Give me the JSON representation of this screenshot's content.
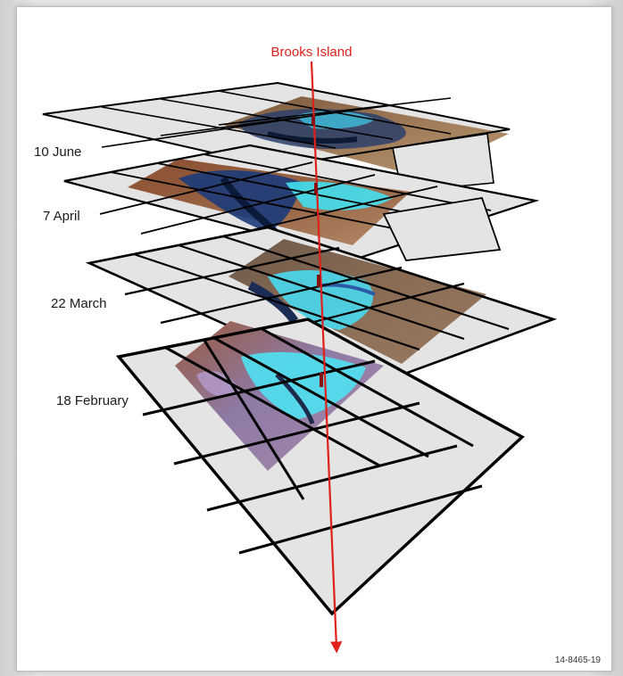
{
  "figure": {
    "target_label": "Brooks Island",
    "figure_id": "14-8465-19",
    "layers": [
      {
        "date": "10 June"
      },
      {
        "date": "7 April"
      },
      {
        "date": "22 March"
      },
      {
        "date": "18 February"
      }
    ]
  },
  "colors": {
    "arrow": "#e0201b",
    "grid_line": "#000000",
    "tile_fill": "#e3e3e3"
  }
}
